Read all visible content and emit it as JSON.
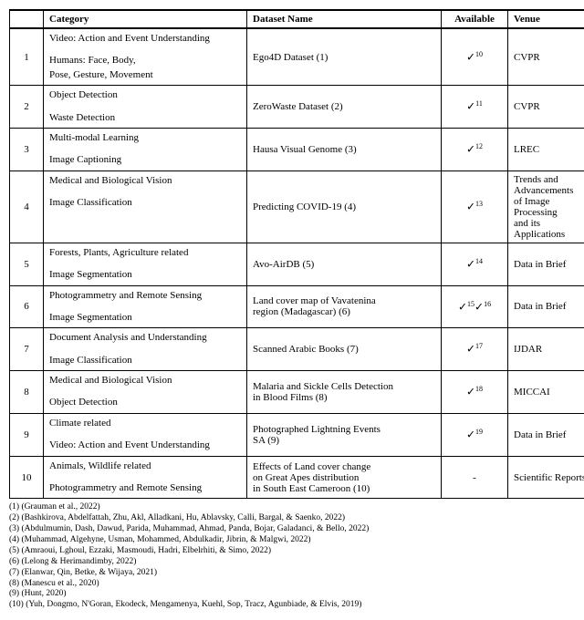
{
  "headers": {
    "category": "Category",
    "dataset": "Dataset Name",
    "available": "Available",
    "venue": "Venue"
  },
  "checkmark": "✓",
  "rows": [
    {
      "n": "1",
      "cat1": "Video: Action and Event Understanding",
      "cat2": "Humans: Face, Body,",
      "cat3": "Pose, Gesture, Movement",
      "dataset": "Ego4D Dataset (1)",
      "avail_sup": "10",
      "venue": "CVPR"
    },
    {
      "n": "2",
      "cat1": "Object Detection",
      "cat2": "Waste Detection",
      "dataset": "ZeroWaste Dataset (2)",
      "avail_sup": "11",
      "venue": "CVPR"
    },
    {
      "n": "3",
      "cat1": "Multi-modal Learning",
      "cat2": "Image Captioning",
      "dataset": "Hausa Visual Genome (3)",
      "avail_sup": "12",
      "venue": "LREC"
    },
    {
      "n": "4",
      "cat1": "Medical and Biological Vision",
      "cat2": "Image Classification",
      "dataset": "Predicting COVID-19 (4)",
      "avail_sup": "13",
      "venue1": "Trends and",
      "venue2": "Advancements",
      "venue3": "of Image",
      "venue4": "Processing",
      "venue5": "and its",
      "venue6": "Applications"
    },
    {
      "n": "5",
      "cat1": "Forests, Plants, Agriculture related",
      "cat2": "Image Segmentation",
      "dataset": "Avo-AirDB (5)",
      "avail_sup": "14",
      "venue": "Data in Brief"
    },
    {
      "n": "6",
      "cat1": "Photogrammetry and Remote Sensing",
      "cat2": "Image Segmentation",
      "dataset1": "Land cover map of Vavatenina",
      "dataset2": "region (Madagascar) (6)",
      "avail_sup": "15",
      "avail_sup2": "16",
      "venue": "Data in Brief"
    },
    {
      "n": "7",
      "cat1": "Document Analysis and Understanding",
      "cat2": "Image Classification",
      "dataset": "Scanned Arabic Books (7)",
      "avail_sup": "17",
      "venue": "IJDAR"
    },
    {
      "n": "8",
      "cat1": "Medical and Biological Vision",
      "cat2": "Object Detection",
      "dataset1": "Malaria and Sickle Cells Detection",
      "dataset2": "in Blood Films (8)",
      "avail_sup": "18",
      "venue": "MICCAI"
    },
    {
      "n": "9",
      "cat1": "Climate related",
      "cat2": "Video: Action and Event Understanding",
      "dataset1": "Photographed Lightning Events",
      "dataset2": "SA (9)",
      "avail_sup": "19",
      "venue": "Data in Brief"
    },
    {
      "n": "10",
      "cat1": "Animals, Wildlife related",
      "cat2": "Photogrammetry and Remote Sensing",
      "dataset1": "Effects of Land cover change",
      "dataset2": "on Great Apes distribution",
      "dataset3": "in South East Cameroon (10)",
      "avail_text": "-",
      "venue": "Scientific Reports"
    }
  ],
  "refs": {
    "r1": "(1) (Grauman et al., 2022)",
    "r2": "(2) (Bashkirova, Abdelfattah, Zhu, Akl, Alladkani, Hu, Ablavsky, Calli, Bargal, & Saenko, 2022)",
    "r3": "(3) (Abdulmumin, Dash, Dawud, Parida, Muhammad, Ahmad, Panda, Bojar, Galadanci, & Bello, 2022)",
    "r4": "(4) (Muhammad, Algehyne, Usman, Mohammed, Abdulkadir, Jibrin, & Malgwi, 2022)",
    "r5": "(5) (Amraoui, Lghoul, Ezzaki, Masmoudi, Hadri, Elbelrhiti, & Simo, 2022)",
    "r6": "(6) (Lelong & Herimandimby, 2022)",
    "r7": "(7) (Elanwar, Qin, Betke, & Wijaya, 2021)",
    "r8": "(8) (Manescu et al., 2020)",
    "r9": "(9) (Hunt, 2020)",
    "r10": "(10) (Yuh, Dongmo, N'Goran, Ekodeck, Mengamenya, Kuehl, Sop, Tracz, Agunbiade, & Elvis, 2019)"
  }
}
